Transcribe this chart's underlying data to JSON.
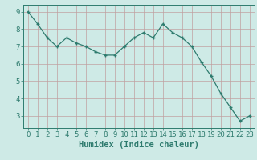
{
  "x": [
    0,
    1,
    2,
    3,
    4,
    5,
    6,
    7,
    8,
    9,
    10,
    11,
    12,
    13,
    14,
    15,
    16,
    17,
    18,
    19,
    20,
    21,
    22,
    23
  ],
  "y": [
    9.0,
    8.3,
    7.5,
    7.0,
    7.5,
    7.2,
    7.0,
    6.7,
    6.5,
    6.5,
    7.0,
    7.5,
    7.8,
    7.5,
    8.3,
    7.8,
    7.5,
    7.0,
    6.1,
    5.3,
    4.3,
    3.5,
    2.7,
    3.0
  ],
  "xlabel": "Humidex (Indice chaleur)",
  "xlim": [
    -0.5,
    23.5
  ],
  "ylim": [
    2.3,
    9.4
  ],
  "yticks": [
    3,
    4,
    5,
    6,
    7,
    8,
    9
  ],
  "xticks": [
    0,
    1,
    2,
    3,
    4,
    5,
    6,
    7,
    8,
    9,
    10,
    11,
    12,
    13,
    14,
    15,
    16,
    17,
    18,
    19,
    20,
    21,
    22,
    23
  ],
  "line_color": "#2e7b6e",
  "marker_color": "#2e7b6e",
  "bg_color": "#ceeae6",
  "grid_color": "#c0a0a0",
  "axis_color": "#2e7b6e",
  "tick_label_color": "#2e7b6e",
  "xlabel_color": "#2e7b6e",
  "xlabel_fontsize": 7.5,
  "tick_fontsize": 6.5
}
